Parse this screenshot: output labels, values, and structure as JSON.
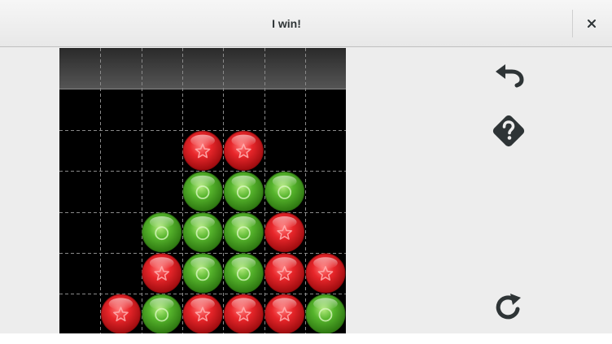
{
  "window": {
    "title": "I win!"
  },
  "icons": {
    "close": "close-icon",
    "undo": "undo-icon",
    "hint": "hint-icon",
    "new_game": "new-game-icon"
  },
  "colors": {
    "red_piece": "#e8262a",
    "green_piece": "#56b42c",
    "board": "#000000",
    "grid": "#8a8a8a"
  },
  "board": {
    "columns": 7,
    "rows": 6,
    "cells": [
      [
        "",
        "",
        "",
        "",
        "",
        "",
        ""
      ],
      [
        "",
        "",
        "",
        "red",
        "red",
        "",
        ""
      ],
      [
        "",
        "",
        "",
        "green",
        "green",
        "green",
        ""
      ],
      [
        "",
        "",
        "green",
        "green",
        "green",
        "red",
        ""
      ],
      [
        "",
        "",
        "red",
        "green",
        "green",
        "red",
        "red"
      ],
      [
        "",
        "red",
        "green",
        "red",
        "red",
        "red",
        "green"
      ]
    ]
  }
}
